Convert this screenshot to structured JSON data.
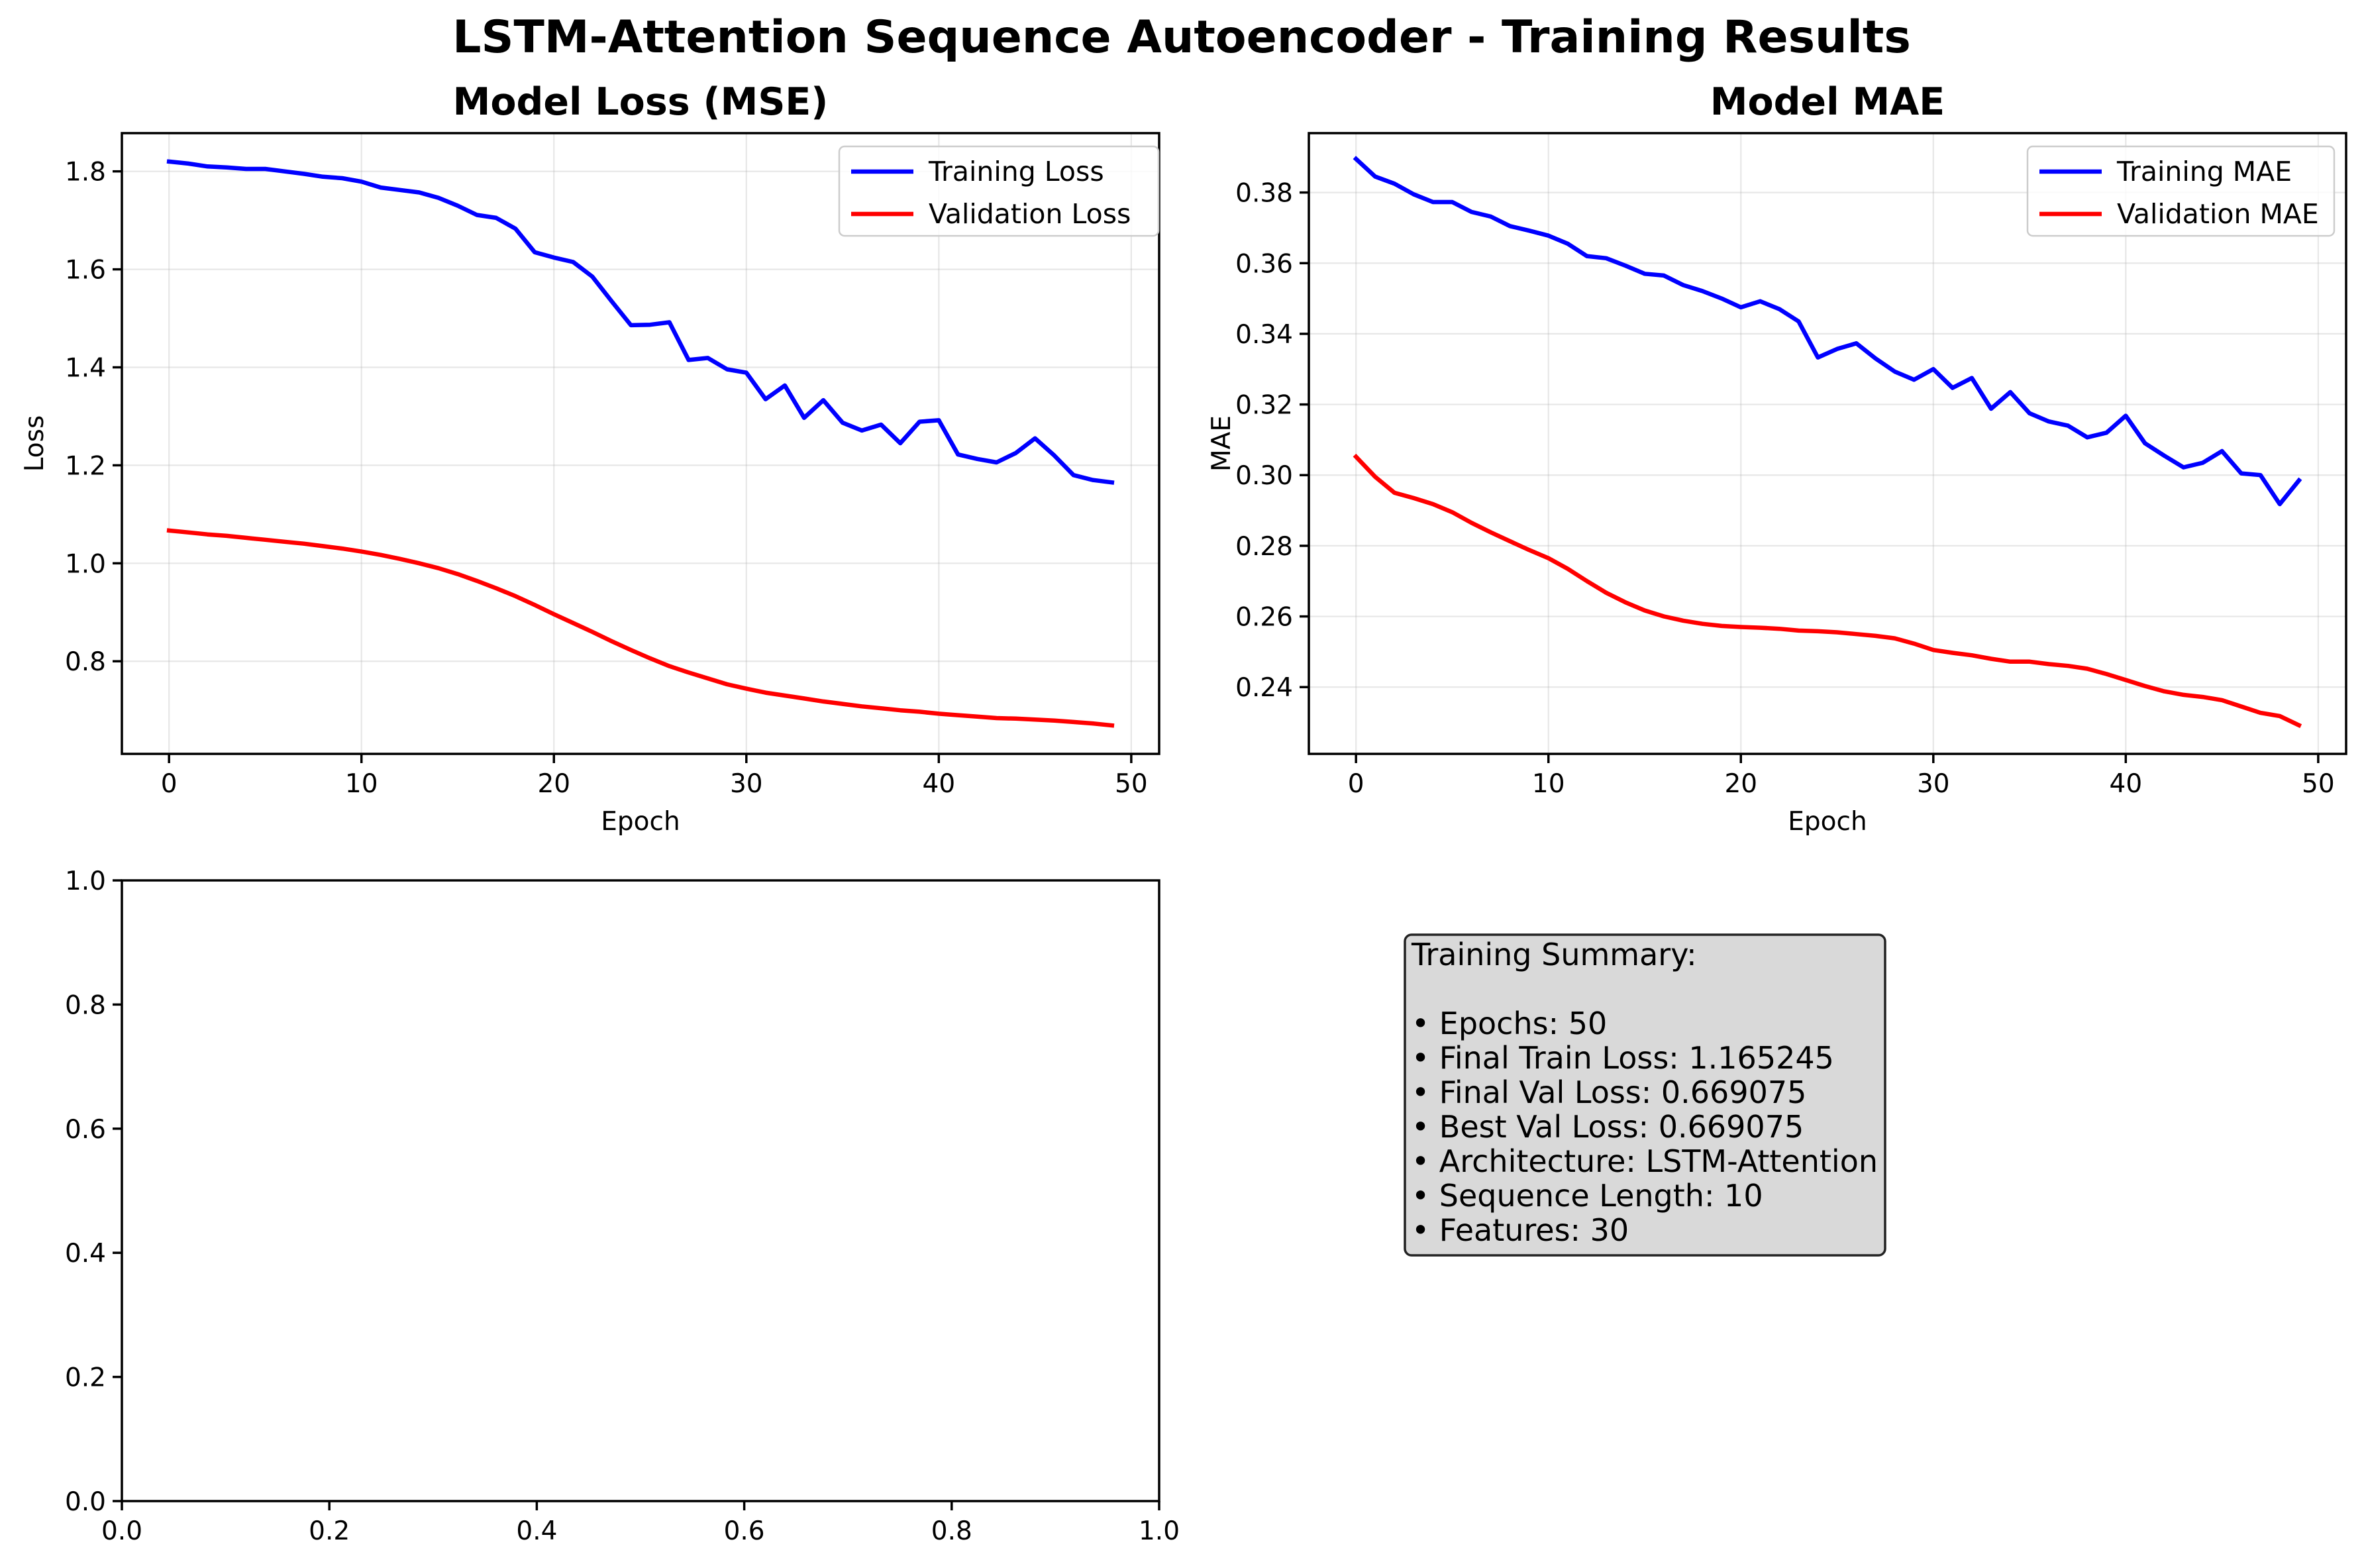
{
  "figure_title": "LSTM-Attention Sequence Autoencoder - Training Results",
  "colors": {
    "training": "#0000ff",
    "validation": "#ff0000",
    "summary_box_bg": "#d9d9d9"
  },
  "chart_data": [
    {
      "type": "line",
      "title": "Model Loss (MSE)",
      "xlabel": "Epoch",
      "ylabel": "Loss",
      "xlim": [
        -2.45,
        51.45
      ],
      "ylim": [
        0.611,
        1.878
      ],
      "xticks": [
        0,
        10,
        20,
        30,
        40,
        50
      ],
      "xtick_labels": [
        "0",
        "10",
        "20",
        "30",
        "40",
        "50"
      ],
      "yticks": [
        0.8,
        1.0,
        1.2,
        1.4,
        1.6,
        1.8
      ],
      "ytick_labels": [
        "0.8",
        "1.0",
        "1.2",
        "1.4",
        "1.6",
        "1.8"
      ],
      "grid": true,
      "legend": "upper right",
      "x": [
        0,
        1,
        2,
        3,
        4,
        5,
        6,
        7,
        8,
        9,
        10,
        11,
        12,
        13,
        14,
        15,
        16,
        17,
        18,
        19,
        20,
        21,
        22,
        23,
        24,
        25,
        26,
        27,
        28,
        29,
        30,
        31,
        32,
        33,
        34,
        35,
        36,
        37,
        38,
        39,
        40,
        41,
        42,
        43,
        44,
        45,
        46,
        47,
        48,
        49
      ],
      "series": [
        {
          "name": "Training Loss",
          "color": "#0000ff",
          "values": [
            1.82,
            1.816,
            1.81,
            1.808,
            1.805,
            1.805,
            1.8,
            1.795,
            1.789,
            1.786,
            1.779,
            1.767,
            1.762,
            1.757,
            1.746,
            1.73,
            1.711,
            1.705,
            1.683,
            1.635,
            1.624,
            1.615,
            1.585,
            1.535,
            1.486,
            1.487,
            1.492,
            1.415,
            1.419,
            1.396,
            1.389,
            1.335,
            1.363,
            1.297,
            1.333,
            1.287,
            1.271,
            1.283,
            1.245,
            1.289,
            1.292,
            1.222,
            1.213,
            1.206,
            1.225,
            1.255,
            1.22,
            1.18,
            1.17,
            1.165
          ]
        },
        {
          "name": "Validation Loss",
          "color": "#ff0000",
          "values": [
            1.067,
            1.063,
            1.059,
            1.056,
            1.052,
            1.048,
            1.044,
            1.04,
            1.035,
            1.03,
            1.024,
            1.017,
            1.009,
            1.0,
            0.99,
            0.978,
            0.964,
            0.949,
            0.933,
            0.915,
            0.896,
            0.878,
            0.86,
            0.841,
            0.823,
            0.806,
            0.79,
            0.777,
            0.765,
            0.753,
            0.744,
            0.736,
            0.73,
            0.724,
            0.718,
            0.713,
            0.708,
            0.704,
            0.7,
            0.697,
            0.693,
            0.69,
            0.687,
            0.684,
            0.683,
            0.681,
            0.679,
            0.676,
            0.673,
            0.669
          ]
        }
      ]
    },
    {
      "type": "line",
      "title": "Model MAE",
      "xlabel": "Epoch",
      "ylabel": "MAE",
      "xlim": [
        -2.45,
        51.45
      ],
      "ylim": [
        0.2211,
        0.3968
      ],
      "xticks": [
        0,
        10,
        20,
        30,
        40,
        50
      ],
      "xtick_labels": [
        "0",
        "10",
        "20",
        "30",
        "40",
        "50"
      ],
      "yticks": [
        0.24,
        0.26,
        0.28,
        0.3,
        0.32,
        0.34,
        0.36,
        0.38
      ],
      "ytick_labels": [
        "0.24",
        "0.26",
        "0.28",
        "0.30",
        "0.32",
        "0.34",
        "0.36",
        "0.38"
      ],
      "grid": true,
      "legend": "upper right",
      "x": [
        0,
        1,
        2,
        3,
        4,
        5,
        6,
        7,
        8,
        9,
        10,
        11,
        12,
        13,
        14,
        15,
        16,
        17,
        18,
        19,
        20,
        21,
        22,
        23,
        24,
        25,
        26,
        27,
        28,
        29,
        30,
        31,
        32,
        33,
        34,
        35,
        36,
        37,
        38,
        39,
        40,
        41,
        42,
        43,
        44,
        45,
        46,
        47,
        48,
        49
      ],
      "series": [
        {
          "name": "Training MAE",
          "color": "#0000ff",
          "values": [
            0.3895,
            0.3845,
            0.3825,
            0.3795,
            0.3773,
            0.3773,
            0.3745,
            0.3732,
            0.3705,
            0.3692,
            0.3678,
            0.3655,
            0.362,
            0.3614,
            0.3593,
            0.357,
            0.3565,
            0.3538,
            0.3521,
            0.35,
            0.3475,
            0.3492,
            0.347,
            0.3435,
            0.3333,
            0.3357,
            0.3373,
            0.333,
            0.3293,
            0.327,
            0.33,
            0.3247,
            0.3275,
            0.3188,
            0.3235,
            0.3175,
            0.3152,
            0.314,
            0.3107,
            0.312,
            0.3168,
            0.309,
            0.3055,
            0.3022,
            0.3035,
            0.3068,
            0.3005,
            0.3,
            0.2918,
            0.2985
          ]
        },
        {
          "name": "Validation MAE",
          "color": "#ff0000",
          "values": [
            0.3052,
            0.2995,
            0.295,
            0.2935,
            0.2918,
            0.2895,
            0.2865,
            0.2838,
            0.2813,
            0.2788,
            0.2765,
            0.2735,
            0.27,
            0.2667,
            0.264,
            0.2617,
            0.26,
            0.2588,
            0.2579,
            0.2573,
            0.257,
            0.2568,
            0.2565,
            0.256,
            0.2558,
            0.2555,
            0.255,
            0.2545,
            0.2538,
            0.2523,
            0.2505,
            0.2497,
            0.249,
            0.248,
            0.2472,
            0.2472,
            0.2465,
            0.246,
            0.2452,
            0.2437,
            0.242,
            0.2403,
            0.2388,
            0.2378,
            0.2372,
            0.2363,
            0.2345,
            0.2327,
            0.2318,
            0.2292
          ]
        }
      ]
    },
    {
      "type": "line",
      "title": "",
      "xlabel": "",
      "ylabel": "",
      "xlim": [
        0.0,
        1.0
      ],
      "ylim": [
        0.0,
        1.0
      ],
      "xticks": [
        0.0,
        0.2,
        0.4,
        0.6,
        0.8,
        1.0
      ],
      "xtick_labels": [
        "0.0",
        "0.2",
        "0.4",
        "0.6",
        "0.8",
        "1.0"
      ],
      "yticks": [
        0.0,
        0.2,
        0.4,
        0.6,
        0.8,
        1.0
      ],
      "ytick_labels": [
        "0.0",
        "0.2",
        "0.4",
        "0.6",
        "0.8",
        "1.0"
      ],
      "grid": false,
      "series": []
    }
  ],
  "summary": {
    "title": "Training Summary:",
    "lines": [
      "• Epochs: 50",
      "• Final Train Loss: 1.165245",
      "• Final Val Loss: 0.669075",
      "• Best Val Loss: 0.669075",
      "• Architecture: LSTM-Attention",
      "• Sequence Length: 10",
      "• Features: 30"
    ]
  }
}
